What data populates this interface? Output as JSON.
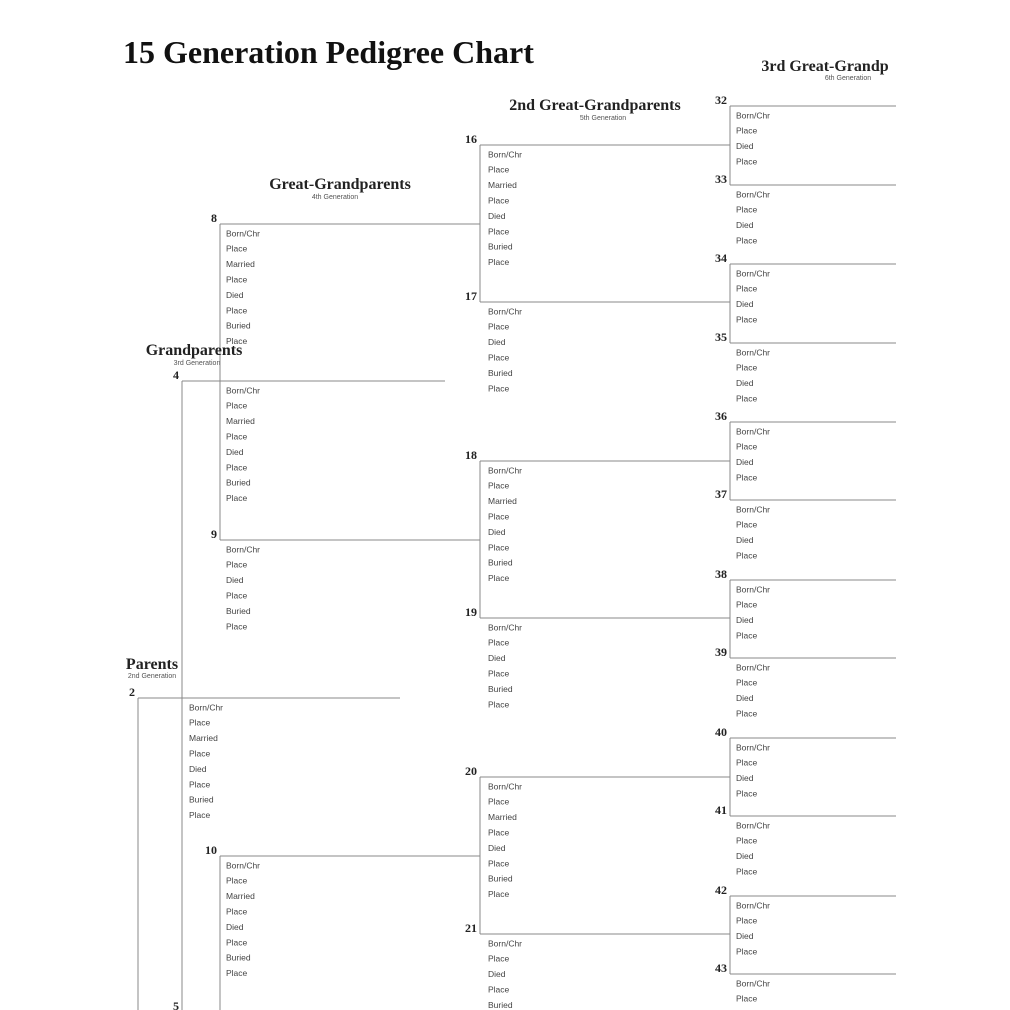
{
  "header": {
    "title": "15 Generation Pedigree Chart"
  },
  "generations": [
    {
      "title": "Parents",
      "subtitle": "2nd Generation"
    },
    {
      "title": "Grandparents",
      "subtitle": "3rd Generation"
    },
    {
      "title": "Great-Grandparents",
      "subtitle": "4th Generation"
    },
    {
      "title": "2nd Great-Grandparents",
      "subtitle": "5th Generation"
    },
    {
      "title": "3rd Great-Grandp",
      "subtitle": "6th Generation"
    }
  ],
  "persons": [
    {
      "number": "2",
      "fields": [
        "Born/Chr",
        "Place",
        "Married",
        "Place",
        "Died",
        "Place",
        "Buried",
        "Place"
      ]
    },
    {
      "number": "4",
      "fields": [
        "Born/Chr",
        "Place",
        "Married",
        "Place",
        "Died",
        "Place",
        "Buried",
        "Place"
      ]
    },
    {
      "number": "5"
    },
    {
      "number": "8",
      "fields": [
        "Born/Chr",
        "Place",
        "Married",
        "Place",
        "Died",
        "Place",
        "Buried",
        "Place"
      ]
    },
    {
      "number": "9",
      "fields": [
        "Born/Chr",
        "Place",
        "Died",
        "Place",
        "Buried",
        "Place"
      ]
    },
    {
      "number": "10",
      "fields": [
        "Born/Chr",
        "Place",
        "Married",
        "Place",
        "Died",
        "Place",
        "Buried",
        "Place"
      ]
    },
    {
      "number": "16",
      "fields": [
        "Born/Chr",
        "Place",
        "Married",
        "Place",
        "Died",
        "Place",
        "Buried",
        "Place"
      ]
    },
    {
      "number": "17",
      "fields": [
        "Born/Chr",
        "Place",
        "Died",
        "Place",
        "Buried",
        "Place"
      ]
    },
    {
      "number": "18",
      "fields": [
        "Born/Chr",
        "Place",
        "Married",
        "Place",
        "Died",
        "Place",
        "Buried",
        "Place"
      ]
    },
    {
      "number": "19",
      "fields": [
        "Born/Chr",
        "Place",
        "Died",
        "Place",
        "Buried",
        "Place"
      ]
    },
    {
      "number": "20",
      "fields": [
        "Born/Chr",
        "Place",
        "Married",
        "Place",
        "Died",
        "Place",
        "Buried",
        "Place"
      ]
    },
    {
      "number": "21",
      "fields": [
        "Born/Chr",
        "Place",
        "Died",
        "Place",
        "Buried"
      ]
    },
    {
      "number": "32",
      "fields": [
        "Born/Chr",
        "Place",
        "Died",
        "Place"
      ]
    },
    {
      "number": "33",
      "fields": [
        "Born/Chr",
        "Place",
        "Died",
        "Place"
      ]
    },
    {
      "number": "34",
      "fields": [
        "Born/Chr",
        "Place",
        "Died",
        "Place"
      ]
    },
    {
      "number": "35",
      "fields": [
        "Born/Chr",
        "Place",
        "Died",
        "Place"
      ]
    },
    {
      "number": "36",
      "fields": [
        "Born/Chr",
        "Place",
        "Died",
        "Place"
      ]
    },
    {
      "number": "37",
      "fields": [
        "Born/Chr",
        "Place",
        "Died",
        "Place"
      ]
    },
    {
      "number": "38",
      "fields": [
        "Born/Chr",
        "Place",
        "Died",
        "Place"
      ]
    },
    {
      "number": "39",
      "fields": [
        "Born/Chr",
        "Place",
        "Died",
        "Place"
      ]
    },
    {
      "number": "40",
      "fields": [
        "Born/Chr",
        "Place",
        "Died",
        "Place"
      ]
    },
    {
      "number": "41",
      "fields": [
        "Born/Chr",
        "Place",
        "Died",
        "Place"
      ]
    },
    {
      "number": "42",
      "fields": [
        "Born/Chr",
        "Place",
        "Died",
        "Place"
      ]
    },
    {
      "number": "43",
      "fields": [
        "Born/Chr",
        "Place"
      ]
    }
  ]
}
